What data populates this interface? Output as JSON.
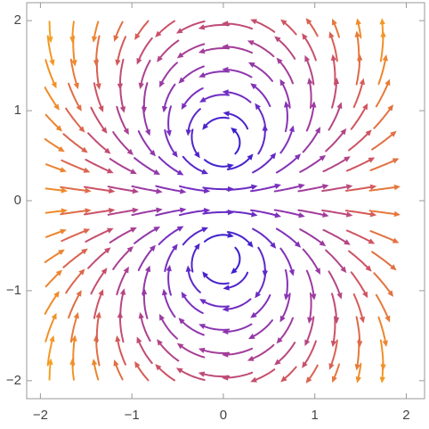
{
  "chart_data": {
    "type": "stream",
    "xlim": [
      -2.15,
      2.2
    ],
    "ylim": [
      -2.2,
      2.2
    ],
    "xticks": [
      {
        "value": -2,
        "label": "−2"
      },
      {
        "value": -1,
        "label": "−1"
      },
      0,
      1,
      2
    ],
    "yticks": [
      {
        "value": -2,
        "label": "−2"
      },
      {
        "value": -1,
        "label": "−1"
      },
      0,
      1,
      2
    ],
    "colormap": [
      "#3a1fd0",
      "#7a2fc0",
      "#a33d9a",
      "#d2555e",
      "#f08a2a",
      "#f5a623"
    ]
  }
}
